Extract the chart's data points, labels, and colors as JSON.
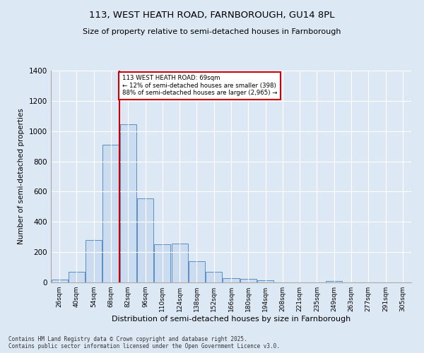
{
  "title1": "113, WEST HEATH ROAD, FARNBOROUGH, GU14 8PL",
  "title2": "Size of property relative to semi-detached houses in Farnborough",
  "xlabel": "Distribution of semi-detached houses by size in Farnborough",
  "ylabel": "Number of semi-detached properties",
  "categories": [
    "26sqm",
    "40sqm",
    "54sqm",
    "68sqm",
    "82sqm",
    "96sqm",
    "110sqm",
    "124sqm",
    "138sqm",
    "152sqm",
    "166sqm",
    "180sqm",
    "194sqm",
    "208sqm",
    "221sqm",
    "235sqm",
    "249sqm",
    "263sqm",
    "277sqm",
    "291sqm",
    "305sqm"
  ],
  "values": [
    20,
    70,
    280,
    910,
    1045,
    555,
    250,
    255,
    140,
    70,
    30,
    25,
    15,
    0,
    0,
    0,
    10,
    0,
    0,
    0,
    0
  ],
  "bar_color": "#ccdcf0",
  "bar_edge_color": "#5a8fc3",
  "vline_color": "#cc0000",
  "vline_x_index": 3,
  "annotation_title": "113 WEST HEATH ROAD: 69sqm",
  "annotation_line1": "← 12% of semi-detached houses are smaller (398)",
  "annotation_line2": "88% of semi-detached houses are larger (2,965) →",
  "annotation_box_color": "#cc0000",
  "ylim": [
    0,
    1400
  ],
  "yticks": [
    0,
    200,
    400,
    600,
    800,
    1000,
    1200,
    1400
  ],
  "footer1": "Contains HM Land Registry data © Crown copyright and database right 2025.",
  "footer2": "Contains public sector information licensed under the Open Government Licence v3.0.",
  "bg_color": "#dde8f5",
  "plot_bg_color": "#dde8f5"
}
